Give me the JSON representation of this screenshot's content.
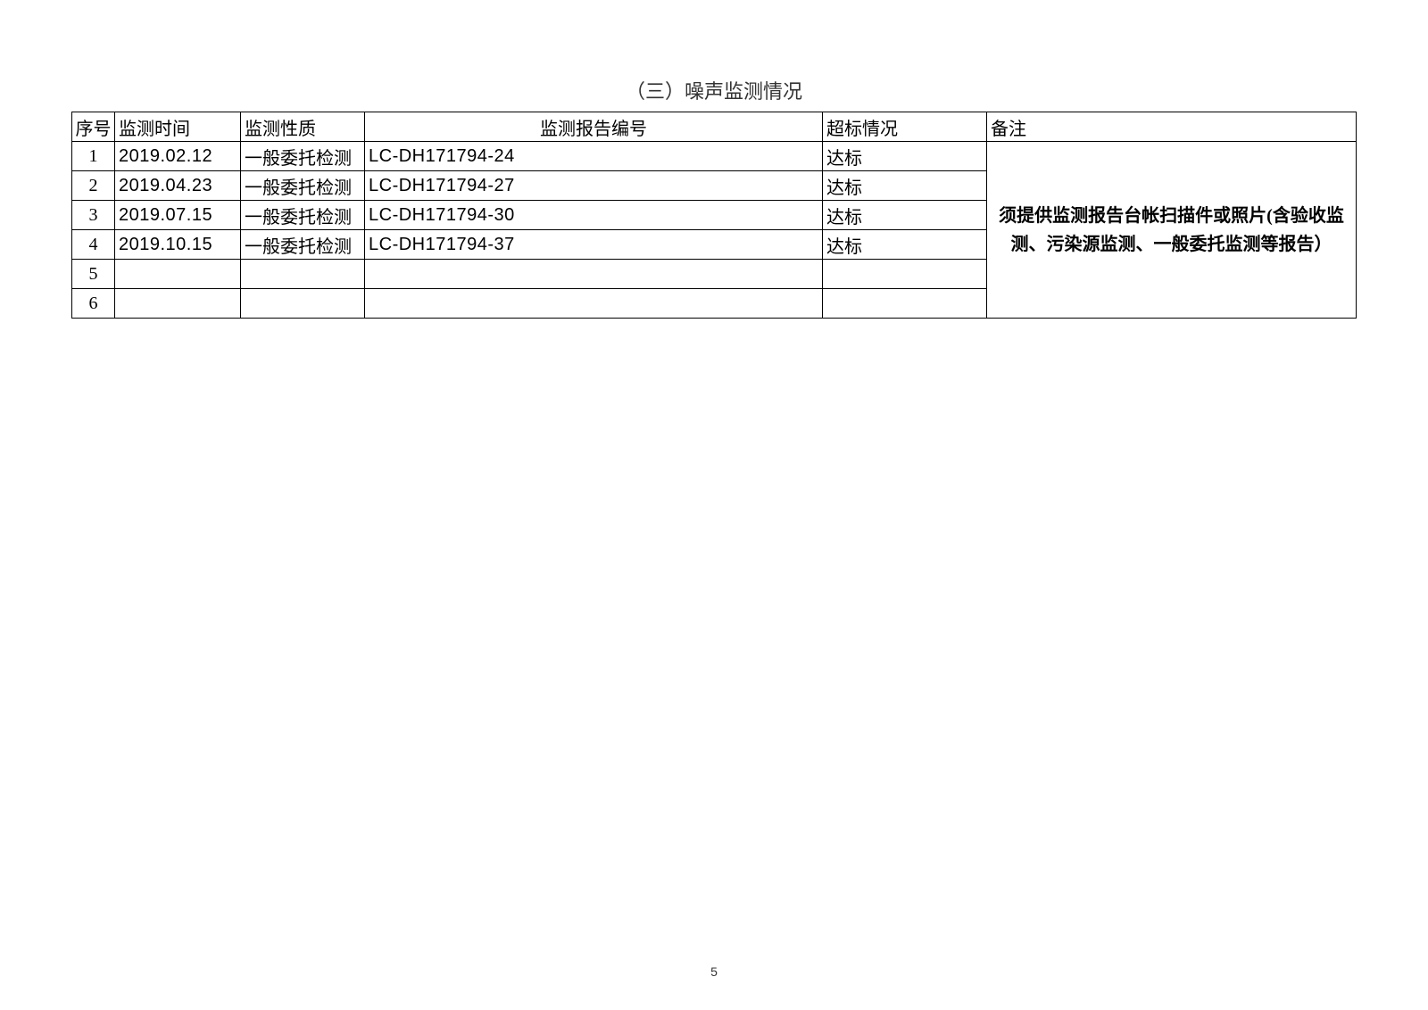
{
  "title": "（三）噪声监测情况",
  "table": {
    "headers": {
      "seq": "序号",
      "time": "监测时间",
      "type": "监测性质",
      "report": "监测报告编号",
      "status": "超标情况",
      "note": "备注"
    },
    "rows": [
      {
        "seq": "1",
        "time": "2019.02.12",
        "type": "一般委托检测",
        "report": "LC-DH171794-24",
        "status": "达标"
      },
      {
        "seq": "2",
        "time": "2019.04.23",
        "type": "一般委托检测",
        "report": "LC-DH171794-27",
        "status": "达标"
      },
      {
        "seq": "3",
        "time": "2019.07.15",
        "type": "一般委托检测",
        "report": "LC-DH171794-30",
        "status": "达标"
      },
      {
        "seq": "4",
        "time": "2019.10.15",
        "type": "一般委托检测",
        "report": "LC-DH171794-37",
        "status": "达标"
      },
      {
        "seq": "5",
        "time": "",
        "type": "",
        "report": "",
        "status": ""
      },
      {
        "seq": "6",
        "time": "",
        "type": "",
        "report": "",
        "status": ""
      }
    ],
    "note_text": "须提供监测报告台帐扫描件或照片(含验收监测、污染源监测、一般委托监测等报告）"
  },
  "page_number": "5",
  "colors": {
    "background": "#ffffff",
    "border": "#000000",
    "text": "#333333"
  }
}
